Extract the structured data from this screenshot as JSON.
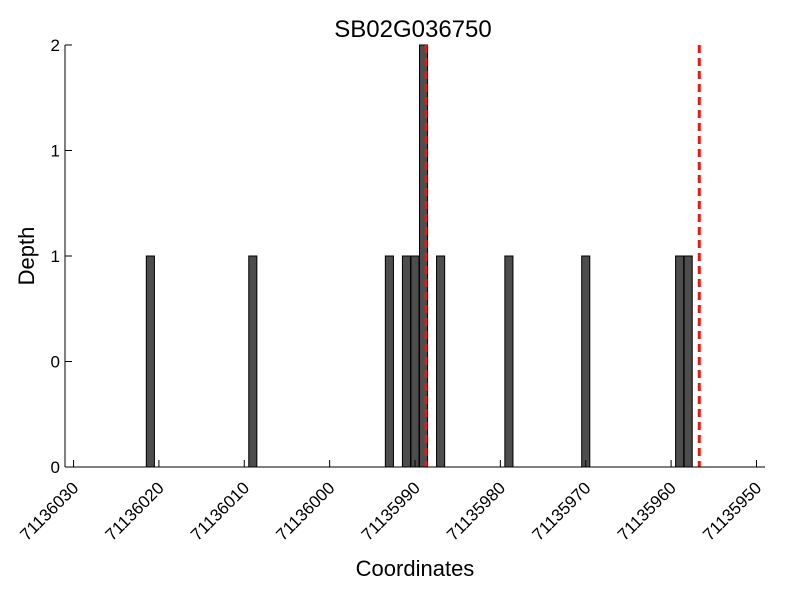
{
  "chart_data": {
    "type": "bar",
    "title": "SB02G036750",
    "xlabel": "Coordinates",
    "ylabel": "Depth",
    "xlim": [
      71136031,
      71135949
    ],
    "ylim": [
      0,
      2
    ],
    "x_inverted": true,
    "grid": false,
    "bar_color": "#4d4d4d",
    "bar_edge_color": "#000000",
    "x_ticks": [
      {
        "value": 71136030,
        "label": "71136030"
      },
      {
        "value": 71136020,
        "label": "71136020"
      },
      {
        "value": 71136010,
        "label": "71136010"
      },
      {
        "value": 71136000,
        "label": "71136000"
      },
      {
        "value": 71135990,
        "label": "71135990"
      },
      {
        "value": 71135980,
        "label": "71135980"
      },
      {
        "value": 71135970,
        "label": "71135970"
      },
      {
        "value": 71135960,
        "label": "71135960"
      },
      {
        "value": 71135950,
        "label": "71135950"
      }
    ],
    "y_ticks": [
      {
        "value": 0,
        "label": "0"
      },
      {
        "value": 0.5,
        "label": "0"
      },
      {
        "value": 1,
        "label": "1"
      },
      {
        "value": 1.5,
        "label": "1"
      },
      {
        "value": 2,
        "label": "2"
      }
    ],
    "x": [
      71136021,
      71136009,
      71135993,
      71135991,
      71135990,
      71135989,
      71135987,
      71135979,
      71135970,
      71135959,
      71135958
    ],
    "values": [
      1,
      1,
      1,
      1,
      1,
      2,
      1,
      1,
      1,
      1,
      1
    ],
    "markers": {
      "color": "#e8190f",
      "style": "dashed",
      "x": [
        71135988.7,
        71135956.7
      ]
    }
  }
}
